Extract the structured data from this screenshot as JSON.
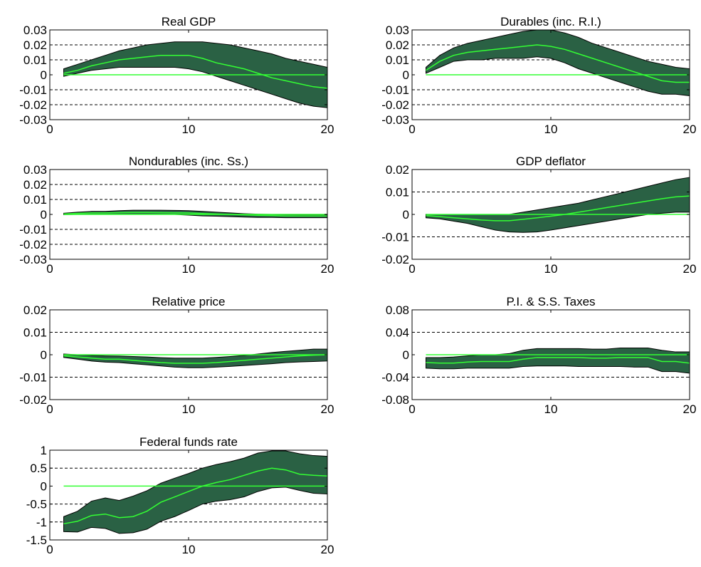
{
  "chart_data": [
    {
      "type": "area",
      "title": "Real GDP",
      "x": [
        1,
        2,
        3,
        4,
        5,
        6,
        7,
        8,
        9,
        10,
        11,
        12,
        13,
        14,
        15,
        16,
        17,
        18,
        19,
        20
      ],
      "yticks": [
        -0.03,
        -0.02,
        -0.01,
        0,
        0.01,
        0.02,
        0.03
      ],
      "ytick_labels": [
        "-0.03",
        "-0.02",
        "-0.01",
        "0",
        "0.01",
        "0.02",
        "0.03"
      ],
      "xticks": [
        0,
        10,
        20
      ],
      "xtick_labels": [
        "0",
        "10",
        "20"
      ],
      "xlim": [
        0,
        20
      ],
      "ylim": [
        -0.03,
        0.03
      ],
      "grid": "dashed horizontal lines at y ticks",
      "series": [
        {
          "role": "median",
          "values": [
            0.001,
            0.003,
            0.006,
            0.008,
            0.01,
            0.011,
            0.012,
            0.013,
            0.013,
            0.013,
            0.011,
            0.008,
            0.006,
            0.004,
            0.001,
            -0.002,
            -0.004,
            -0.006,
            -0.008,
            -0.009
          ]
        },
        {
          "role": "upper",
          "values": [
            0.004,
            0.007,
            0.01,
            0.013,
            0.016,
            0.018,
            0.02,
            0.021,
            0.022,
            0.022,
            0.022,
            0.021,
            0.02,
            0.018,
            0.016,
            0.014,
            0.011,
            0.009,
            0.007,
            0.005
          ]
        },
        {
          "role": "lower",
          "values": [
            -0.001,
            0.001,
            0.003,
            0.004,
            0.005,
            0.005,
            0.005,
            0.005,
            0.005,
            0.004,
            0.002,
            -0.001,
            -0.004,
            -0.007,
            -0.01,
            -0.013,
            -0.016,
            -0.019,
            -0.021,
            -0.022
          ]
        }
      ],
      "colors": {
        "band": "#2a6144",
        "median": "#33ff33",
        "zero": "#33ff33"
      }
    },
    {
      "type": "area",
      "title": "Durables (inc. R.I.)",
      "x": [
        1,
        2,
        3,
        4,
        5,
        6,
        7,
        8,
        9,
        10,
        11,
        12,
        13,
        14,
        15,
        16,
        17,
        18,
        19,
        20
      ],
      "yticks": [
        -0.03,
        -0.02,
        -0.01,
        0,
        0.01,
        0.02,
        0.03
      ],
      "ytick_labels": [
        "-0.03",
        "-0.02",
        "-0.01",
        "0",
        "0.01",
        "0.02",
        "0.03"
      ],
      "xticks": [
        0,
        10,
        20
      ],
      "xtick_labels": [
        "0",
        "10",
        "20"
      ],
      "xlim": [
        0,
        20
      ],
      "ylim": [
        -0.03,
        0.03
      ],
      "grid": "dashed horizontal lines at y ticks",
      "series": [
        {
          "role": "median",
          "values": [
            0.003,
            0.009,
            0.013,
            0.015,
            0.016,
            0.017,
            0.018,
            0.019,
            0.02,
            0.019,
            0.017,
            0.014,
            0.011,
            0.008,
            0.005,
            0.002,
            -0.001,
            -0.004,
            -0.005,
            -0.005
          ]
        },
        {
          "role": "upper",
          "values": [
            0.005,
            0.013,
            0.018,
            0.021,
            0.023,
            0.025,
            0.027,
            0.029,
            0.03,
            0.03,
            0.028,
            0.025,
            0.021,
            0.018,
            0.015,
            0.012,
            0.009,
            0.007,
            0.005,
            0.004
          ]
        },
        {
          "role": "lower",
          "values": [
            0.001,
            0.005,
            0.009,
            0.01,
            0.01,
            0.011,
            0.011,
            0.011,
            0.012,
            0.011,
            0.008,
            0.004,
            0.001,
            -0.002,
            -0.005,
            -0.008,
            -0.011,
            -0.013,
            -0.013,
            -0.014
          ]
        }
      ],
      "colors": {
        "band": "#2a6144",
        "median": "#33ff33",
        "zero": "#33ff33"
      }
    },
    {
      "type": "area",
      "title": "Nondurables (inc. Ss.)",
      "x": [
        1,
        2,
        3,
        4,
        5,
        6,
        7,
        8,
        9,
        10,
        11,
        12,
        13,
        14,
        15,
        16,
        17,
        18,
        19,
        20
      ],
      "yticks": [
        -0.03,
        -0.02,
        -0.01,
        0,
        0.01,
        0.02,
        0.03
      ],
      "ytick_labels": [
        "-0.03",
        "-0.02",
        "-0.01",
        "0",
        "0.01",
        "0.02",
        "0.03"
      ],
      "xticks": [
        0,
        10,
        20
      ],
      "xtick_labels": [
        "0",
        "10",
        "20"
      ],
      "xlim": [
        0,
        20
      ],
      "ylim": [
        -0.03,
        0.03
      ],
      "grid": "dashed horizontal lines at y ticks",
      "series": [
        {
          "role": "median",
          "values": [
            0.0003,
            0.0007,
            0.001,
            0.001,
            0.0012,
            0.0013,
            0.0013,
            0.0012,
            0.0011,
            0.001,
            0.0006,
            0.0003,
            0,
            -0.0003,
            -0.0006,
            -0.0008,
            -0.001,
            -0.001,
            -0.001,
            -0.001
          ]
        },
        {
          "role": "upper",
          "values": [
            0.0008,
            0.0015,
            0.002,
            0.002,
            0.0025,
            0.0028,
            0.0028,
            0.0028,
            0.0027,
            0.0025,
            0.002,
            0.0015,
            0.001,
            0.0005,
            0.0002,
            0,
            -0.0002,
            -0.0003,
            -0.0003,
            -0.0003
          ]
        },
        {
          "role": "lower",
          "values": [
            -0.0002,
            0,
            0,
            0,
            0,
            0,
            0,
            0,
            0,
            -0.0005,
            -0.001,
            -0.0012,
            -0.0015,
            -0.0018,
            -0.002,
            -0.002,
            -0.0022,
            -0.0022,
            -0.0022,
            -0.0022
          ]
        }
      ],
      "colors": {
        "band": "#2a6144",
        "median": "#33ff33",
        "zero": "#33ff33"
      }
    },
    {
      "type": "area",
      "title": "GDP deflator",
      "x": [
        1,
        2,
        3,
        4,
        5,
        6,
        7,
        8,
        9,
        10,
        11,
        12,
        13,
        14,
        15,
        16,
        17,
        18,
        19,
        20
      ],
      "yticks": [
        -0.02,
        -0.01,
        0,
        0.01,
        0.02
      ],
      "ytick_labels": [
        "-0.02",
        "-0.01",
        "0",
        "0.01",
        "0.02"
      ],
      "xticks": [
        0,
        10,
        20
      ],
      "xtick_labels": [
        "0",
        "10",
        "20"
      ],
      "xlim": [
        0,
        20
      ],
      "ylim": [
        -0.02,
        0.02
      ],
      "grid": "dashed horizontal lines at y ticks",
      "series": [
        {
          "role": "median",
          "values": [
            -0.0005,
            -0.001,
            -0.0015,
            -0.002,
            -0.0025,
            -0.0028,
            -0.0028,
            -0.0022,
            -0.0015,
            -0.0008,
            0,
            0.001,
            0.002,
            0.003,
            0.004,
            0.005,
            0.006,
            0.007,
            0.0078,
            0.0082
          ]
        },
        {
          "role": "upper",
          "values": [
            0,
            0,
            0,
            0,
            0,
            0,
            0,
            0.001,
            0.002,
            0.003,
            0.004,
            0.005,
            0.0065,
            0.008,
            0.0095,
            0.011,
            0.0125,
            0.014,
            0.0155,
            0.0165
          ]
        },
        {
          "role": "lower",
          "values": [
            -0.0015,
            -0.002,
            -0.003,
            -0.004,
            -0.0055,
            -0.007,
            -0.0078,
            -0.008,
            -0.0078,
            -0.007,
            -0.006,
            -0.005,
            -0.004,
            -0.003,
            -0.002,
            -0.001,
            0,
            0.0005,
            0.001,
            0.001
          ]
        }
      ],
      "colors": {
        "band": "#2a6144",
        "median": "#33ff33",
        "zero": "#33ff33"
      }
    },
    {
      "type": "area",
      "title": "Relative price",
      "x": [
        1,
        2,
        3,
        4,
        5,
        6,
        7,
        8,
        9,
        10,
        11,
        12,
        13,
        14,
        15,
        16,
        17,
        18,
        19,
        20
      ],
      "yticks": [
        -0.02,
        -0.01,
        0,
        0.01,
        0.02
      ],
      "ytick_labels": [
        "-0.02",
        "-0.01",
        "0",
        "0.01",
        "0.02"
      ],
      "xticks": [
        0,
        10,
        20
      ],
      "xtick_labels": [
        "0",
        "10",
        "20"
      ],
      "xlim": [
        0,
        20
      ],
      "ylim": [
        -0.02,
        0.02
      ],
      "grid": "dashed horizontal lines at y ticks",
      "series": [
        {
          "role": "median",
          "values": [
            -0.0005,
            -0.001,
            -0.0015,
            -0.002,
            -0.002,
            -0.0025,
            -0.003,
            -0.0035,
            -0.0038,
            -0.0038,
            -0.0038,
            -0.0035,
            -0.003,
            -0.0025,
            -0.002,
            -0.0015,
            -0.001,
            -0.0005,
            -0.0002,
            0
          ]
        },
        {
          "role": "upper",
          "values": [
            0.0003,
            0,
            -0.0003,
            -0.0005,
            -0.0006,
            -0.0008,
            -0.001,
            -0.0013,
            -0.0015,
            -0.0015,
            -0.0015,
            -0.0012,
            -0.0008,
            -0.0003,
            0.0003,
            0.001,
            0.0015,
            0.002,
            0.0025,
            0.0025
          ]
        },
        {
          "role": "lower",
          "values": [
            -0.0012,
            -0.002,
            -0.0028,
            -0.0033,
            -0.0035,
            -0.004,
            -0.0045,
            -0.005,
            -0.0055,
            -0.0058,
            -0.0058,
            -0.0055,
            -0.0052,
            -0.0048,
            -0.0044,
            -0.004,
            -0.0035,
            -0.0032,
            -0.003,
            -0.0028
          ]
        }
      ],
      "colors": {
        "band": "#2a6144",
        "median": "#33ff33",
        "zero": "#33ff33"
      }
    },
    {
      "type": "area",
      "title": "P.I. & S.S. Taxes",
      "x": [
        1,
        2,
        3,
        4,
        5,
        6,
        7,
        8,
        9,
        10,
        11,
        12,
        13,
        14,
        15,
        16,
        17,
        18,
        19,
        20
      ],
      "yticks": [
        -0.08,
        -0.04,
        0,
        0.04,
        0.08
      ],
      "ytick_labels": [
        "-0.08",
        "-0.04",
        "0",
        "0.04",
        "0.08"
      ],
      "xticks": [
        0,
        10,
        20
      ],
      "xtick_labels": [
        "0",
        "10",
        "20"
      ],
      "xlim": [
        0,
        20
      ],
      "ylim": [
        -0.08,
        0.08
      ],
      "grid": "dashed horizontal lines at y ticks",
      "series": [
        {
          "role": "median",
          "values": [
            -0.014,
            -0.015,
            -0.015,
            -0.013,
            -0.012,
            -0.012,
            -0.012,
            -0.008,
            -0.005,
            -0.005,
            -0.005,
            -0.005,
            -0.006,
            -0.006,
            -0.005,
            -0.005,
            -0.005,
            -0.012,
            -0.012,
            -0.015
          ]
        },
        {
          "role": "upper",
          "values": [
            -0.005,
            -0.005,
            -0.004,
            -0.002,
            0,
            0,
            0.002,
            0.008,
            0.011,
            0.011,
            0.011,
            0.011,
            0.01,
            0.01,
            0.012,
            0.012,
            0.012,
            0.008,
            0.005,
            0.005
          ]
        },
        {
          "role": "lower",
          "values": [
            -0.024,
            -0.025,
            -0.025,
            -0.024,
            -0.024,
            -0.024,
            -0.024,
            -0.021,
            -0.02,
            -0.02,
            -0.02,
            -0.021,
            -0.021,
            -0.021,
            -0.021,
            -0.022,
            -0.022,
            -0.03,
            -0.03,
            -0.033
          ]
        }
      ],
      "colors": {
        "band": "#2a6144",
        "median": "#33ff33",
        "zero": "#33ff33"
      }
    },
    {
      "type": "area",
      "title": "Federal funds rate",
      "x": [
        1,
        2,
        3,
        4,
        5,
        6,
        7,
        8,
        9,
        10,
        11,
        12,
        13,
        14,
        15,
        16,
        17,
        18,
        19,
        20
      ],
      "yticks": [
        -1.5,
        -1,
        -0.5,
        0,
        0.5,
        1
      ],
      "ytick_labels": [
        "-1.5",
        "-1",
        "-0.5",
        "0",
        "0.5",
        "1"
      ],
      "xticks": [
        0,
        10,
        20
      ],
      "xtick_labels": [
        "0",
        "10",
        "20"
      ],
      "xlim": [
        0,
        20
      ],
      "ylim": [
        -1.5,
        1
      ],
      "grid": "dashed horizontal lines at y ticks",
      "series": [
        {
          "role": "median",
          "values": [
            -1.05,
            -0.98,
            -0.82,
            -0.78,
            -0.88,
            -0.85,
            -0.7,
            -0.45,
            -0.3,
            -0.15,
            0,
            0.1,
            0.18,
            0.3,
            0.42,
            0.5,
            0.45,
            0.33,
            0.3,
            0.28
          ]
        },
        {
          "role": "upper",
          "values": [
            -0.85,
            -0.7,
            -0.42,
            -0.33,
            -0.4,
            -0.28,
            -0.13,
            0.08,
            0.22,
            0.35,
            0.5,
            0.6,
            0.68,
            0.78,
            0.92,
            0.98,
            0.98,
            0.9,
            0.85,
            0.83
          ]
        },
        {
          "role": "lower",
          "values": [
            -1.27,
            -1.28,
            -1.15,
            -1.18,
            -1.32,
            -1.3,
            -1.2,
            -0.98,
            -0.85,
            -0.68,
            -0.5,
            -0.42,
            -0.38,
            -0.3,
            -0.15,
            -0.05,
            -0.03,
            -0.12,
            -0.2,
            -0.22
          ]
        }
      ],
      "colors": {
        "band": "#2a6144",
        "median": "#33ff33",
        "zero": "#33ff33"
      }
    }
  ]
}
